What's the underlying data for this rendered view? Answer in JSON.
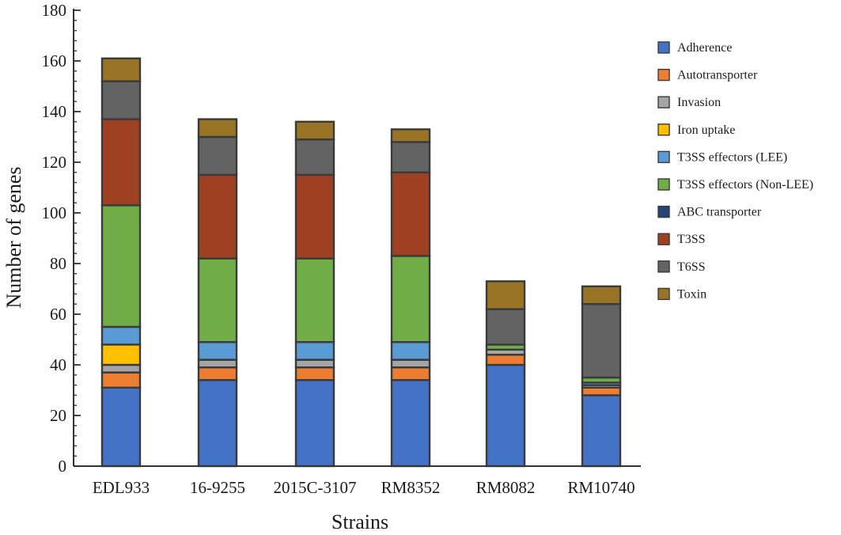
{
  "chart_data": {
    "type": "bar",
    "stacked": true,
    "xlabel": "Strains",
    "ylabel": "Number of genes",
    "ylim": [
      0,
      180
    ],
    "yticks": [
      0,
      20,
      40,
      60,
      80,
      100,
      120,
      140,
      160,
      180
    ],
    "categories": [
      "EDL933",
      "16-9255",
      "2015C-3107",
      "RM8352",
      "RM8082",
      "RM10740"
    ],
    "legend_position": "right",
    "series": [
      {
        "name": "Adherence",
        "color": "#4472c4",
        "values": [
          31,
          34,
          34,
          34,
          40,
          28
        ]
      },
      {
        "name": "Autotransporter",
        "color": "#ed7d31",
        "values": [
          6,
          5,
          5,
          5,
          4,
          3
        ]
      },
      {
        "name": "Invasion",
        "color": "#a5a5a5",
        "values": [
          3,
          3,
          3,
          3,
          2,
          1
        ]
      },
      {
        "name": "Iron uptake",
        "color": "#ffc000",
        "values": [
          8,
          0,
          0,
          0,
          0,
          0
        ]
      },
      {
        "name": "T3SS effectors (LEE)",
        "color": "#5b9bd5",
        "values": [
          7,
          7,
          7,
          7,
          0,
          1
        ]
      },
      {
        "name": "T3SS effectors (Non-LEE)",
        "color": "#70ad47",
        "values": [
          48,
          33,
          33,
          34,
          2,
          2
        ]
      },
      {
        "name": "ABC transporter",
        "color": "#264478",
        "values": [
          0,
          0,
          0,
          0,
          0,
          0
        ]
      },
      {
        "name": "T3SS",
        "color": "#9e4022",
        "values": [
          34,
          33,
          33,
          33,
          0,
          0
        ]
      },
      {
        "name": "T6SS",
        "color": "#636363",
        "values": [
          15,
          15,
          14,
          12,
          14,
          29
        ]
      },
      {
        "name": "Toxin",
        "color": "#997326",
        "values": [
          9,
          7,
          7,
          5,
          11,
          7
        ]
      }
    ]
  }
}
